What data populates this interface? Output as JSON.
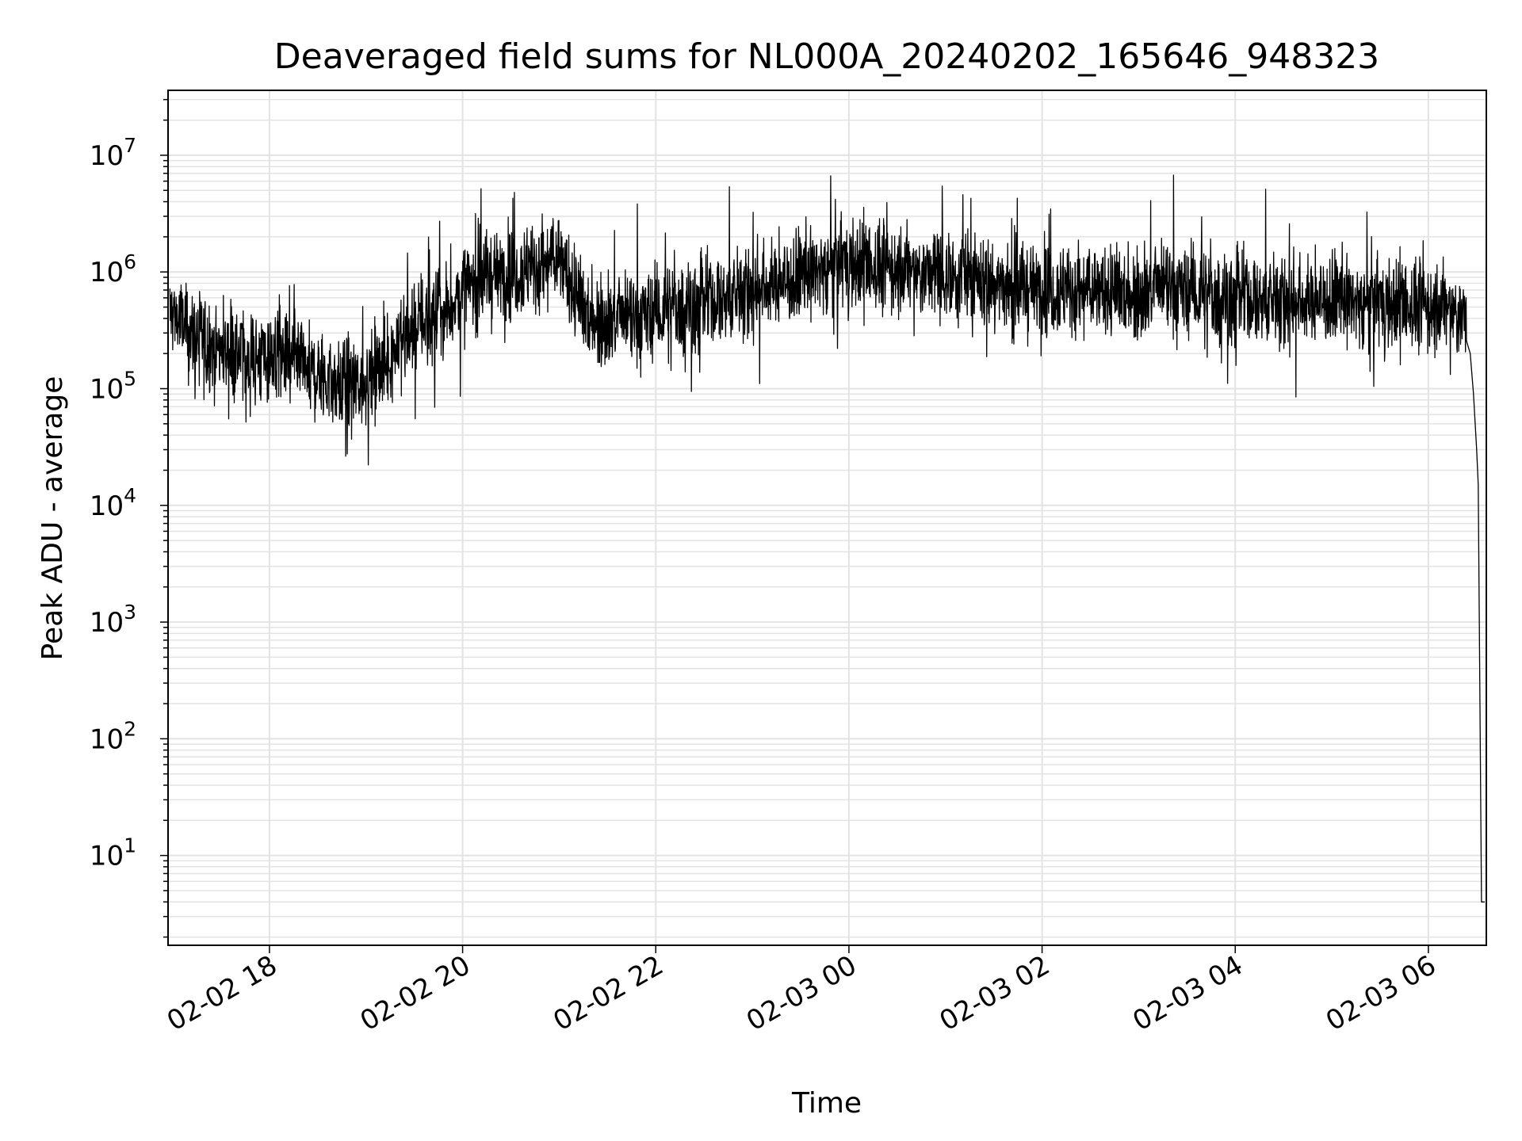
{
  "chart_data": {
    "type": "line",
    "title": "Deaveraged field sums for NL000A_20240202_165646_948323",
    "xlabel": "Time",
    "ylabel": "Peak ADU - average",
    "x_ticks": [
      "02-02 18",
      "02-02 20",
      "02-02 22",
      "02-03 00",
      "02-03 02",
      "02-03 04",
      "02-03 06"
    ],
    "y_scale": "log",
    "y_ticks": [
      {
        "base": "10",
        "exp": "1",
        "value": 10
      },
      {
        "base": "10",
        "exp": "2",
        "value": 100
      },
      {
        "base": "10",
        "exp": "3",
        "value": 1000
      },
      {
        "base": "10",
        "exp": "4",
        "value": 10000
      },
      {
        "base": "10",
        "exp": "5",
        "value": 100000
      },
      {
        "base": "10",
        "exp": "6",
        "value": 1000000
      },
      {
        "base": "10",
        "exp": "7",
        "value": 10000000
      }
    ],
    "xlim": [
      "2024-02-02 16:57",
      "2024-02-03 06:36"
    ],
    "ylim": [
      1.7,
      36000000
    ],
    "grid": true,
    "line_color": "#000000",
    "grid_color": "#e3e3e3",
    "series": [
      {
        "x": [
          "2024-02-02 17:00",
          "2024-02-02 17:10",
          "2024-02-02 17:20",
          "2024-02-02 17:30",
          "2024-02-02 17:40",
          "2024-02-02 17:50",
          "2024-02-02 18:00",
          "2024-02-02 18:10",
          "2024-02-02 18:20",
          "2024-02-02 18:30",
          "2024-02-02 18:40",
          "2024-02-02 18:50",
          "2024-02-02 19:00",
          "2024-02-02 19:10",
          "2024-02-02 19:20",
          "2024-02-02 19:30",
          "2024-02-02 19:40",
          "2024-02-02 19:50",
          "2024-02-02 20:00",
          "2024-02-02 20:15",
          "2024-02-02 20:30",
          "2024-02-02 20:45",
          "2024-02-02 21:00",
          "2024-02-02 21:15",
          "2024-02-02 21:30",
          "2024-02-02 21:45",
          "2024-02-02 22:00",
          "2024-02-02 22:15",
          "2024-02-02 22:30",
          "2024-02-02 22:45",
          "2024-02-02 23:00",
          "2024-02-02 23:15",
          "2024-02-02 23:30",
          "2024-02-02 23:45",
          "2024-02-03 00:00",
          "2024-02-03 00:15",
          "2024-02-03 00:30",
          "2024-02-03 00:45",
          "2024-02-03 01:00",
          "2024-02-03 01:15",
          "2024-02-03 01:30",
          "2024-02-03 01:45",
          "2024-02-03 02:00",
          "2024-02-03 02:15",
          "2024-02-03 02:30",
          "2024-02-03 02:45",
          "2024-02-03 03:00",
          "2024-02-03 03:15",
          "2024-02-03 03:30",
          "2024-02-03 03:45",
          "2024-02-03 04:00",
          "2024-02-03 04:15",
          "2024-02-03 04:30",
          "2024-02-03 04:45",
          "2024-02-03 05:00",
          "2024-02-03 05:15",
          "2024-02-03 05:30",
          "2024-02-03 05:45",
          "2024-02-03 06:00",
          "2024-02-03 06:10",
          "2024-02-03 06:20",
          "2024-02-03 06:26",
          "2024-02-03 06:30",
          "2024-02-03 06:31",
          "2024-02-03 06:33",
          "2024-02-03 06:35"
        ],
        "y": [
          450000,
          300000,
          250000,
          220000,
          200000,
          180000,
          190000,
          170000,
          150000,
          130000,
          110000,
          100000,
          120000,
          150000,
          250000,
          350000,
          400000,
          450000,
          700000,
          900000,
          1000000,
          1100000,
          1300000,
          450000,
          400000,
          380000,
          420000,
          500000,
          550000,
          600000,
          700000,
          800000,
          900000,
          1100000,
          1200000,
          1100000,
          1050000,
          950000,
          1000000,
          900000,
          800000,
          700000,
          750000,
          700000,
          680000,
          650000,
          700000,
          720000,
          650000,
          600000,
          620000,
          580000,
          560000,
          560000,
          580000,
          560000,
          540000,
          520000,
          500000,
          480000,
          420000,
          350000,
          150000,
          20000,
          4,
          4
        ]
      }
    ]
  }
}
